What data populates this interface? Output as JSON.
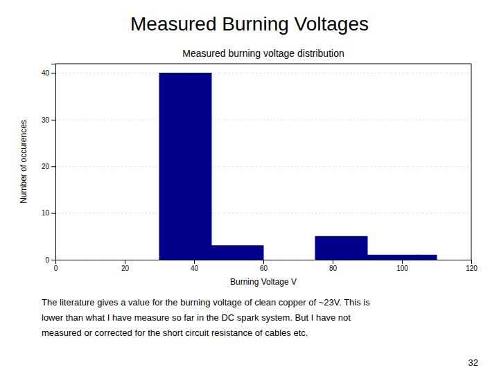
{
  "chart_data": {
    "type": "histogram",
    "title": "Measured Burning Voltages",
    "subtitle": "Measured burning voltage distribution",
    "xlabel": "Burning Voltage V",
    "ylabel": "Number of occurences",
    "bins": [
      30,
      45,
      60,
      75,
      90,
      105,
      110
    ],
    "values": [
      40,
      3,
      0,
      5,
      1,
      1
    ],
    "color": "#00008B",
    "xlim": [
      0,
      120
    ],
    "ylim": [
      0,
      42
    ],
    "xticks": [
      0,
      20,
      40,
      60,
      80,
      100,
      120
    ],
    "yticks": [
      0,
      10,
      20,
      30,
      40
    ],
    "grid": true,
    "annotations": [
      "The literature gives a value for the burning voltage of clean copper of ~23V.  This is",
      "lower than what I have measure so far in the DC spark system.  But I have not",
      "measured or corrected for the short circuit resistance of cables etc.",
      "32"
    ]
  }
}
